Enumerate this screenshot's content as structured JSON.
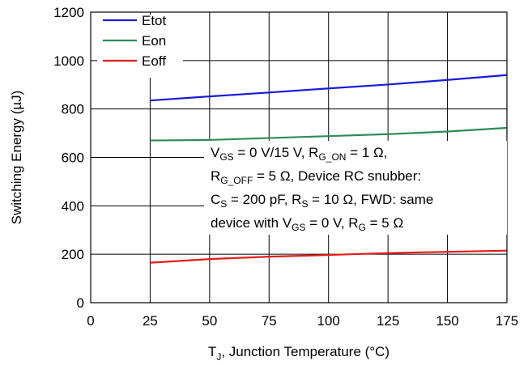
{
  "chart_data": {
    "type": "line",
    "title": "",
    "xlabel": "T_J, Junction Temperature (°C)",
    "ylabel": "Switching Energy (µJ)",
    "xlim": [
      0,
      175
    ],
    "ylim": [
      0,
      1200
    ],
    "xticks": [
      "0",
      "25",
      "50",
      "75",
      "100",
      "125",
      "150",
      "175"
    ],
    "yticks": [
      "0",
      "200",
      "400",
      "600",
      "800",
      "1000",
      "1200"
    ],
    "grid": true,
    "legend_position": "top-left",
    "x": [
      25,
      50,
      75,
      100,
      125,
      150,
      175
    ],
    "series": [
      {
        "name": "Etot",
        "color": "#1a1adc",
        "values": [
          835,
          852,
          868,
          885,
          901,
          920,
          940
        ]
      },
      {
        "name": "Eon",
        "color": "#2e8b57",
        "values": [
          670,
          672,
          680,
          688,
          696,
          707,
          722
        ]
      },
      {
        "name": "Eoff",
        "color": "#e81a1a",
        "values": [
          165,
          180,
          190,
          197,
          205,
          210,
          215
        ]
      }
    ],
    "annotation": {
      "line1": [
        "V",
        "GS",
        " = 0 V/15 V, R",
        "G_ON",
        " = 1 Ω,"
      ],
      "line2": [
        "R",
        "G_OFF",
        " = 5 Ω, Device RC snubber:"
      ],
      "line3": [
        "C",
        "S",
        " = 200 pF, R",
        "S",
        " = 10 Ω, FWD: same"
      ],
      "line4": [
        "device with V",
        "GS",
        " = 0 V, R",
        "G",
        " = 5 Ω"
      ]
    }
  }
}
